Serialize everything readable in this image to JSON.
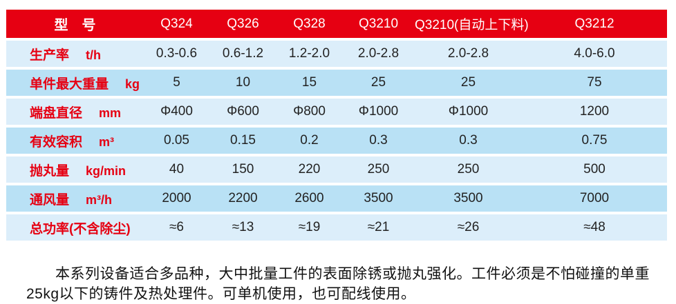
{
  "colors": {
    "header_bg": "#e60012",
    "header_text": "#ffffff",
    "row_light_bg": "#dceefa",
    "row_dark_bg": "#b9e1f5",
    "label_text": "#e60012",
    "value_text": "#222222",
    "page_bg": "#ffffff"
  },
  "table": {
    "header": {
      "label": "型　号",
      "models": [
        "Q324",
        "Q326",
        "Q328",
        "Q3210",
        "Q3210(自动上下料)",
        "Q3212"
      ]
    },
    "rows": [
      {
        "label": "生产率",
        "unit": "t/h",
        "values": [
          "0.3-0.6",
          "0.6-1.2",
          "1.2-2.0",
          "2.0-2.8",
          "2.0-2.8",
          "4.0-6.0"
        ]
      },
      {
        "label": "单件最大重量",
        "unit": "kg",
        "values": [
          "5",
          "10",
          "15",
          "25",
          "25",
          "75"
        ]
      },
      {
        "label": "端盘直径",
        "unit": "mm",
        "values": [
          "Φ400",
          "Φ600",
          "Φ800",
          "Φ1000",
          "Φ1000",
          "1200"
        ]
      },
      {
        "label": "有效容积",
        "unit": "m³",
        "values": [
          "0.05",
          "0.15",
          "0.2",
          "0.3",
          "0.3",
          "0.75"
        ]
      },
      {
        "label": "抛丸量",
        "unit": "kg/min",
        "values": [
          "40",
          "150",
          "220",
          "250",
          "250",
          "500"
        ]
      },
      {
        "label": "通风量",
        "unit": "m³/h",
        "values": [
          "2000",
          "2200",
          "2600",
          "3500",
          "3500",
          "7000"
        ]
      },
      {
        "label": "总功率(不含除尘)",
        "unit": "",
        "values": [
          "≈6",
          "≈13",
          "≈19",
          "≈21",
          "≈26",
          "≈48"
        ]
      }
    ]
  },
  "footer": {
    "paragraph": "本系列设备适合多品种，大中批量工件的表面除锈或抛丸强化。工件必须是不怕碰撞的单重25kg以下的铸件及热处理件。可单机使用，也可配线使用。"
  }
}
